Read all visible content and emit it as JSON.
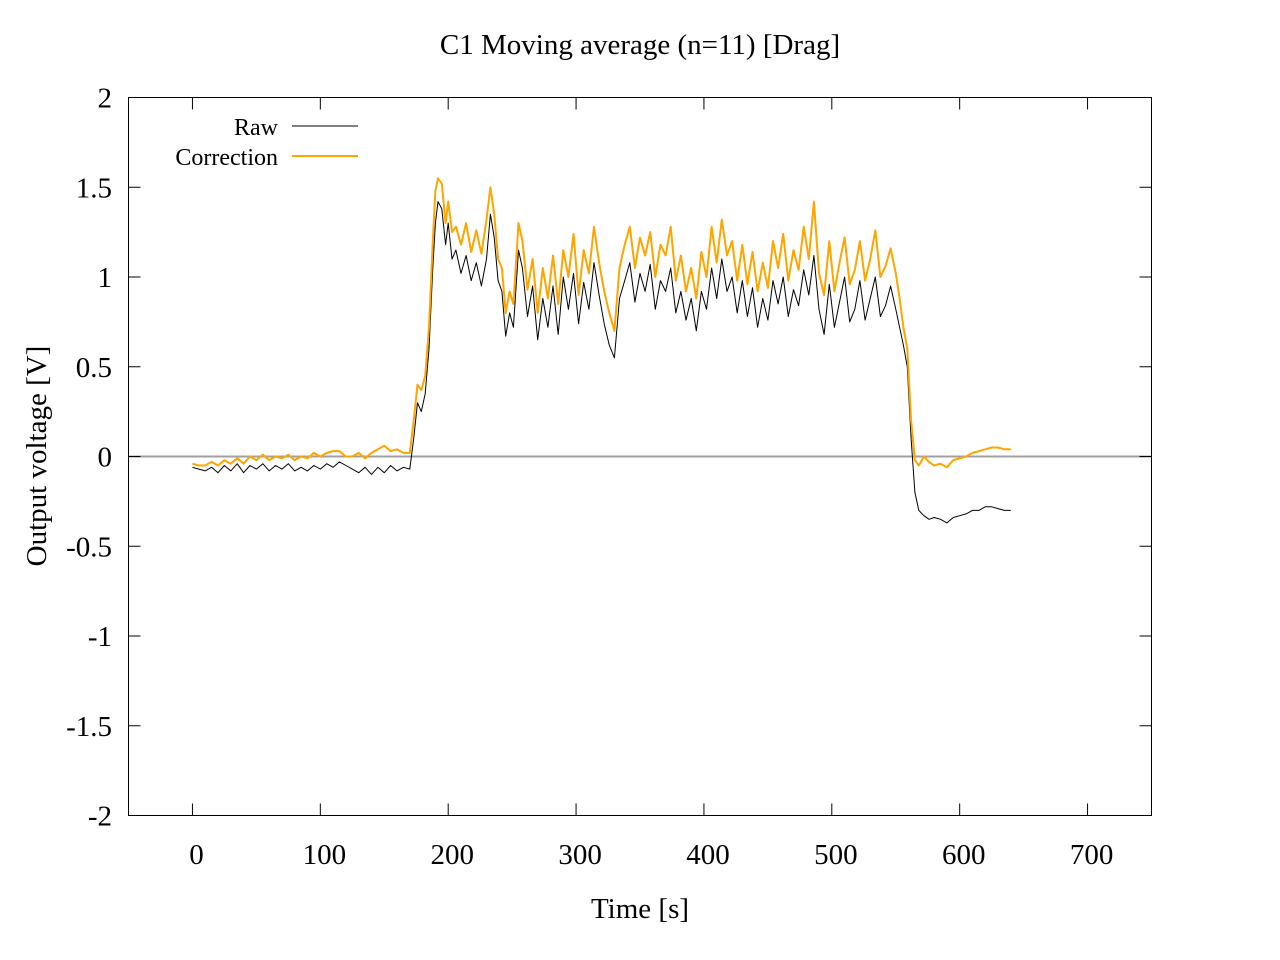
{
  "chart_data": {
    "type": "line",
    "title": "C1  Moving average (n=11) [Drag]",
    "xlabel": "Time [s]",
    "ylabel": "Output voltage [V]",
    "xlim": [
      -50,
      750
    ],
    "ylim": [
      -2,
      2
    ],
    "xticks": [
      0,
      100,
      200,
      300,
      400,
      500,
      600,
      700
    ],
    "yticks": [
      -2,
      -1.5,
      -1,
      -0.5,
      0,
      0.5,
      1,
      1.5,
      2
    ],
    "xtick_labels": [
      "0",
      "100",
      "200",
      "300",
      "400",
      "500",
      "600",
      "700"
    ],
    "ytick_labels": [
      "-2",
      "-1.5",
      "-1",
      "-0.5",
      "0",
      "0.5",
      "1",
      "1.5",
      "2"
    ],
    "grid": false,
    "zero_line": {
      "y": 0,
      "color": "#a0a0a0"
    },
    "legend": {
      "position": "top-left"
    },
    "series": [
      {
        "name": "Raw",
        "color": "#000000",
        "x": [
          0,
          5,
          10,
          15,
          20,
          25,
          30,
          35,
          40,
          45,
          50,
          55,
          60,
          65,
          70,
          75,
          80,
          85,
          90,
          95,
          100,
          105,
          110,
          115,
          120,
          125,
          130,
          135,
          140,
          145,
          150,
          155,
          160,
          165,
          170,
          173,
          176,
          179,
          182,
          185,
          188,
          190,
          192,
          195,
          198,
          200,
          203,
          206,
          210,
          214,
          218,
          222,
          226,
          230,
          233,
          236,
          239,
          242,
          245,
          248,
          251,
          255,
          258,
          262,
          266,
          270,
          274,
          278,
          282,
          286,
          290,
          294,
          298,
          302,
          306,
          310,
          314,
          318,
          322,
          326,
          330,
          334,
          338,
          342,
          346,
          350,
          354,
          358,
          362,
          366,
          370,
          374,
          378,
          382,
          386,
          390,
          394,
          398,
          402,
          406,
          410,
          414,
          418,
          422,
          426,
          430,
          434,
          438,
          442,
          446,
          450,
          454,
          458,
          462,
          466,
          470,
          474,
          478,
          482,
          486,
          490,
          494,
          498,
          502,
          506,
          510,
          514,
          518,
          522,
          526,
          530,
          534,
          538,
          542,
          546,
          550,
          553,
          556,
          559,
          562,
          565,
          568,
          572,
          576,
          580,
          585,
          590,
          595,
          600,
          605,
          610,
          615,
          620,
          625,
          630,
          635,
          640
        ],
        "y": [
          -0.06,
          -0.07,
          -0.08,
          -0.06,
          -0.09,
          -0.05,
          -0.08,
          -0.04,
          -0.09,
          -0.05,
          -0.07,
          -0.04,
          -0.08,
          -0.05,
          -0.07,
          -0.04,
          -0.08,
          -0.06,
          -0.08,
          -0.05,
          -0.07,
          -0.04,
          -0.06,
          -0.03,
          -0.05,
          -0.07,
          -0.09,
          -0.06,
          -0.1,
          -0.06,
          -0.09,
          -0.05,
          -0.08,
          -0.06,
          -0.07,
          0.1,
          0.3,
          0.25,
          0.35,
          0.6,
          1.05,
          1.3,
          1.42,
          1.38,
          1.18,
          1.3,
          1.1,
          1.15,
          1.02,
          1.12,
          0.98,
          1.08,
          0.95,
          1.1,
          1.35,
          1.22,
          0.98,
          0.92,
          0.67,
          0.8,
          0.72,
          1.15,
          1.05,
          0.78,
          0.95,
          0.65,
          0.88,
          0.72,
          0.95,
          0.68,
          1.0,
          0.82,
          1.02,
          0.74,
          0.97,
          0.82,
          1.08,
          0.9,
          0.74,
          0.62,
          0.55,
          0.88,
          0.98,
          1.08,
          0.86,
          1.02,
          0.92,
          1.07,
          0.82,
          0.98,
          0.92,
          1.05,
          0.8,
          0.92,
          0.76,
          0.88,
          0.7,
          0.92,
          0.82,
          1.05,
          0.88,
          1.1,
          0.92,
          1.0,
          0.8,
          0.98,
          0.78,
          0.94,
          0.72,
          0.88,
          0.76,
          0.98,
          0.85,
          1.0,
          0.78,
          0.93,
          0.84,
          1.04,
          0.9,
          1.12,
          0.82,
          0.68,
          0.96,
          0.72,
          0.86,
          1.0,
          0.75,
          0.82,
          0.98,
          0.76,
          0.88,
          1.0,
          0.78,
          0.84,
          0.95,
          0.82,
          0.72,
          0.62,
          0.5,
          0.1,
          -0.2,
          -0.3,
          -0.33,
          -0.35,
          -0.34,
          -0.35,
          -0.37,
          -0.34,
          -0.33,
          -0.32,
          -0.3,
          -0.3,
          -0.28,
          -0.28,
          -0.29,
          -0.3,
          -0.3
        ]
      },
      {
        "name": "Correction",
        "color": "#ffa500",
        "x": [
          0,
          5,
          10,
          15,
          20,
          25,
          30,
          35,
          40,
          45,
          50,
          55,
          60,
          65,
          70,
          75,
          80,
          85,
          90,
          95,
          100,
          105,
          110,
          115,
          120,
          125,
          130,
          135,
          140,
          145,
          150,
          155,
          160,
          165,
          170,
          173,
          176,
          179,
          182,
          185,
          188,
          190,
          192,
          195,
          198,
          200,
          203,
          206,
          210,
          214,
          218,
          222,
          226,
          230,
          233,
          236,
          239,
          242,
          245,
          248,
          251,
          255,
          258,
          262,
          266,
          270,
          274,
          278,
          282,
          286,
          290,
          294,
          298,
          302,
          306,
          310,
          314,
          318,
          322,
          326,
          330,
          334,
          338,
          342,
          346,
          350,
          354,
          358,
          362,
          366,
          370,
          374,
          378,
          382,
          386,
          390,
          394,
          398,
          402,
          406,
          410,
          414,
          418,
          422,
          426,
          430,
          434,
          438,
          442,
          446,
          450,
          454,
          458,
          462,
          466,
          470,
          474,
          478,
          482,
          486,
          490,
          494,
          498,
          502,
          506,
          510,
          514,
          518,
          522,
          526,
          530,
          534,
          538,
          542,
          546,
          550,
          553,
          556,
          559,
          562,
          565,
          568,
          572,
          576,
          580,
          585,
          590,
          595,
          600,
          605,
          610,
          615,
          620,
          625,
          630,
          635,
          640
        ],
        "y": [
          -0.04,
          -0.05,
          -0.05,
          -0.03,
          -0.05,
          -0.02,
          -0.04,
          -0.01,
          -0.04,
          0.0,
          -0.02,
          0.01,
          -0.02,
          0.0,
          -0.01,
          0.01,
          -0.02,
          0.0,
          -0.01,
          0.02,
          0.0,
          0.02,
          0.03,
          0.03,
          0.0,
          0.0,
          0.02,
          -0.01,
          0.02,
          0.04,
          0.06,
          0.03,
          0.04,
          0.02,
          0.02,
          0.2,
          0.4,
          0.37,
          0.45,
          0.72,
          1.2,
          1.48,
          1.55,
          1.52,
          1.3,
          1.42,
          1.25,
          1.28,
          1.18,
          1.3,
          1.14,
          1.26,
          1.13,
          1.32,
          1.5,
          1.35,
          1.1,
          1.05,
          0.8,
          0.92,
          0.85,
          1.3,
          1.2,
          0.93,
          1.1,
          0.8,
          1.05,
          0.88,
          1.12,
          0.85,
          1.15,
          1.0,
          1.24,
          0.9,
          1.15,
          1.02,
          1.28,
          1.08,
          0.92,
          0.8,
          0.7,
          1.05,
          1.18,
          1.28,
          1.05,
          1.22,
          1.12,
          1.25,
          1.0,
          1.18,
          1.12,
          1.28,
          0.98,
          1.12,
          0.92,
          1.05,
          0.88,
          1.14,
          1.0,
          1.28,
          1.08,
          1.32,
          1.12,
          1.2,
          0.98,
          1.18,
          0.96,
          1.14,
          0.92,
          1.08,
          0.94,
          1.2,
          1.05,
          1.24,
          0.98,
          1.15,
          1.04,
          1.28,
          1.1,
          1.42,
          1.02,
          0.9,
          1.2,
          0.92,
          1.08,
          1.22,
          0.96,
          1.04,
          1.2,
          0.98,
          1.1,
          1.26,
          1.0,
          1.06,
          1.16,
          1.02,
          0.88,
          0.72,
          0.6,
          0.2,
          -0.02,
          -0.05,
          0.0,
          -0.03,
          -0.05,
          -0.04,
          -0.06,
          -0.02,
          -0.01,
          0.0,
          0.02,
          0.03,
          0.04,
          0.05,
          0.05,
          0.04,
          0.04
        ]
      }
    ]
  }
}
